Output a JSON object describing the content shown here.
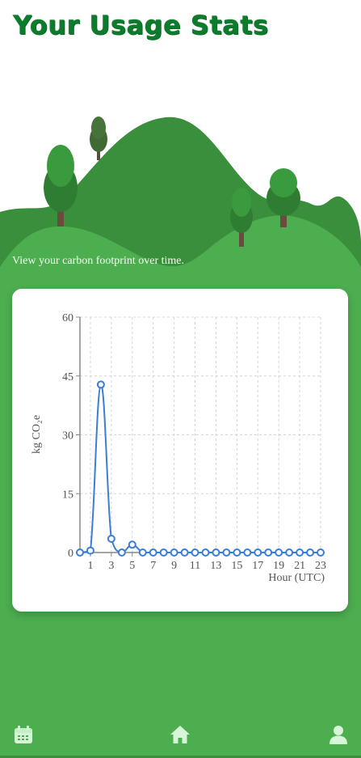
{
  "header": {
    "title": "Your Usage Stats",
    "subtitle": "View your carbon footprint over time."
  },
  "colors": {
    "background_green": "#4cae4f",
    "title_green": "#0c7c2c",
    "dark_hill": "#3a8f3c",
    "line_blue": "#3a7ed8"
  },
  "chart_data": {
    "type": "line",
    "title": "",
    "xlabel": "Hour (UTC)",
    "ylabel": "kg CO₂e",
    "x": [
      0,
      1,
      2,
      3,
      4,
      5,
      6,
      7,
      8,
      9,
      10,
      11,
      12,
      13,
      14,
      15,
      16,
      17,
      18,
      19,
      20,
      21,
      22,
      23
    ],
    "values": [
      0,
      0.5,
      42.8,
      3.5,
      0,
      2,
      0,
      0,
      0,
      0,
      0,
      0,
      0,
      0,
      0,
      0,
      0,
      0,
      0,
      0,
      0,
      0,
      0,
      0
    ],
    "x_tick_labels": [
      "1",
      "3",
      "5",
      "7",
      "9",
      "11",
      "13",
      "15",
      "17",
      "19",
      "21",
      "23"
    ],
    "y_tick_labels": [
      "0",
      "15",
      "30",
      "45",
      "60"
    ],
    "ylim": [
      0,
      60
    ],
    "xlim": [
      0,
      23
    ],
    "grid": true
  },
  "nav": {
    "items": [
      {
        "name": "calendar-icon"
      },
      {
        "name": "home-icon"
      },
      {
        "name": "user-icon"
      }
    ]
  }
}
